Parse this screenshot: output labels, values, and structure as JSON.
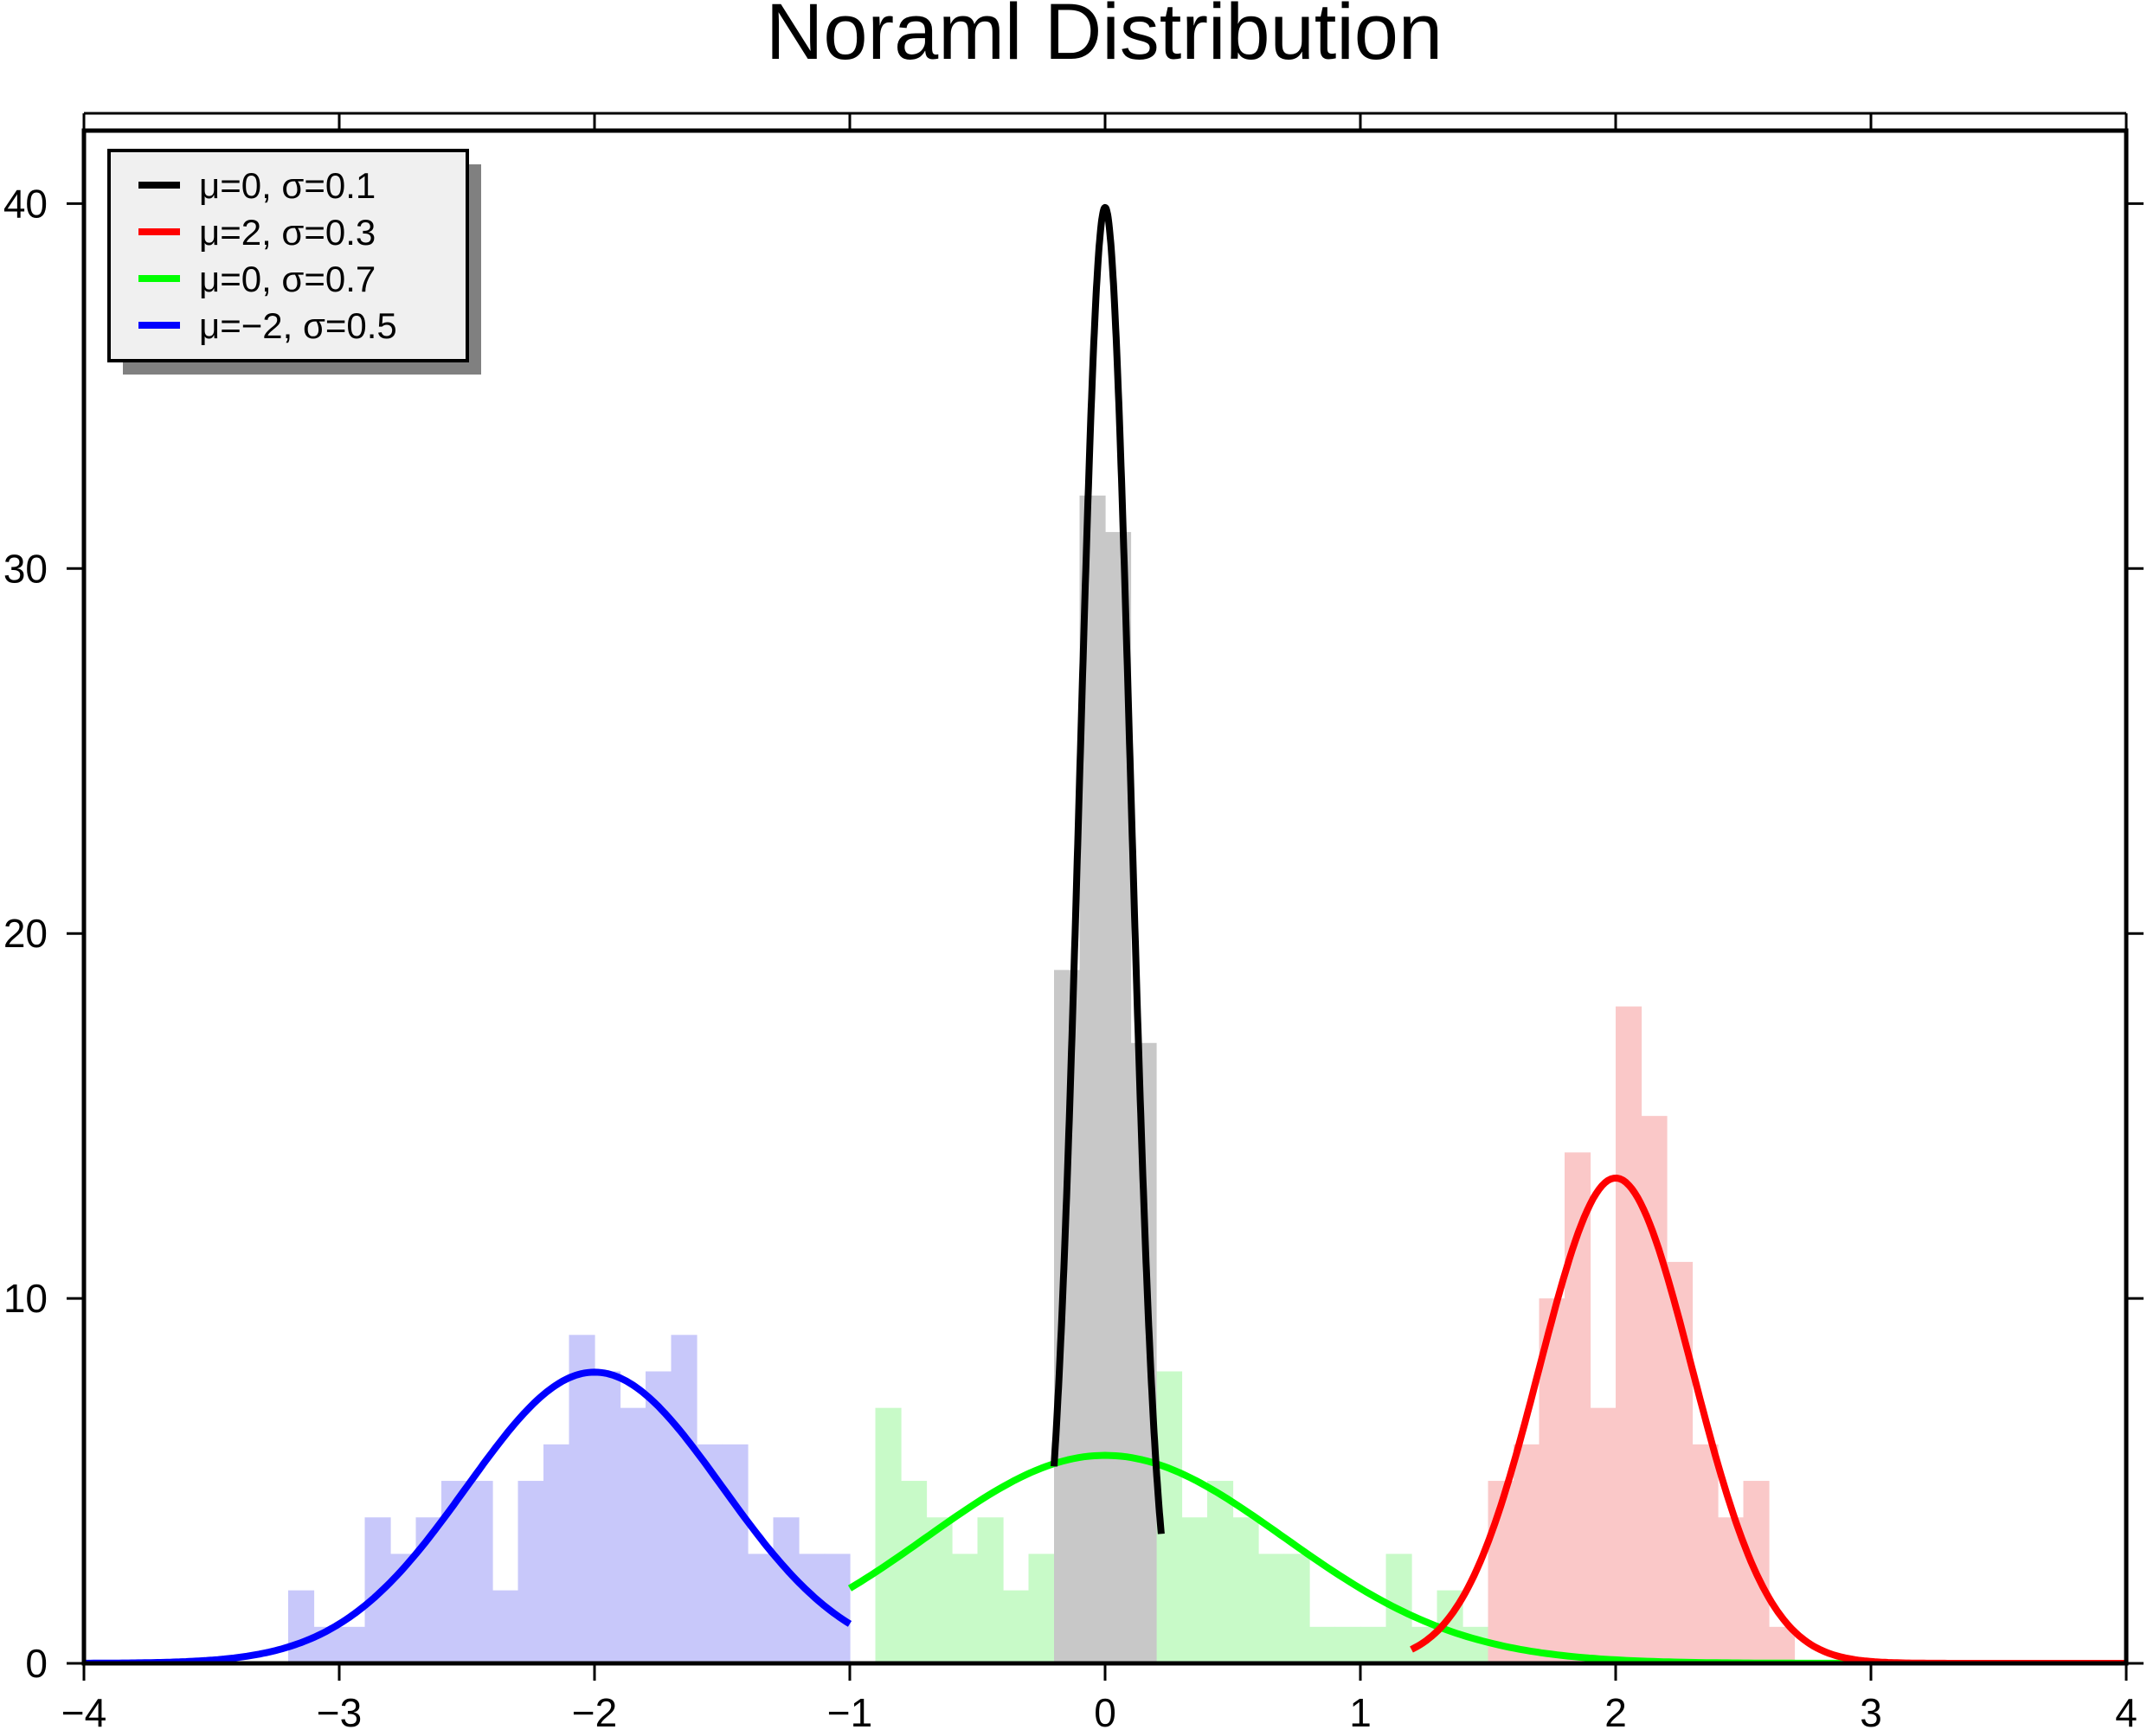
{
  "chart_data": {
    "type": "histogram",
    "title": "Noraml Distribution",
    "xlim": [
      -4,
      4
    ],
    "ylim": [
      0,
      42
    ],
    "x_ticks": [
      -4,
      -3,
      -2,
      -1,
      0,
      1,
      2,
      3,
      4
    ],
    "x_tick_labels": [
      "−4",
      "−3",
      "−2",
      "−1",
      "0",
      "1",
      "2",
      "3",
      "4"
    ],
    "y_ticks": [
      0,
      10,
      20,
      30,
      40
    ],
    "y_tick_labels": [
      "0",
      "10",
      "20",
      "30",
      "40"
    ],
    "grid": false,
    "legend": {
      "position": "top-left",
      "entries": [
        {
          "label": "μ=0, σ=0.1",
          "color": "#000000"
        },
        {
          "label": "μ=2, σ=0.3",
          "color": "#ff0000"
        },
        {
          "label": "μ=0, σ=0.7",
          "color": "#00ff00"
        },
        {
          "label": "μ=−2, σ=0.5",
          "color": "#0000ff"
        }
      ]
    },
    "series": [
      {
        "mu": -2,
        "sigma": 0.5,
        "line_color": "#0000ff",
        "fill_color": "#c8c8fa",
        "bin_width": 0.1,
        "bins": [
          [
            -3.2,
            2
          ],
          [
            -3.1,
            1
          ],
          [
            -3.0,
            1
          ],
          [
            -2.9,
            4
          ],
          [
            -2.8,
            3
          ],
          [
            -2.7,
            4
          ],
          [
            -2.6,
            5
          ],
          [
            -2.5,
            5
          ],
          [
            -2.4,
            2
          ],
          [
            -2.3,
            5
          ],
          [
            -2.2,
            6
          ],
          [
            -2.1,
            9
          ],
          [
            -2.0,
            8
          ],
          [
            -1.9,
            7
          ],
          [
            -1.8,
            8
          ],
          [
            -1.7,
            9
          ],
          [
            -1.6,
            6
          ],
          [
            -1.5,
            6
          ],
          [
            -1.4,
            3
          ],
          [
            -1.3,
            4
          ],
          [
            -1.2,
            3
          ],
          [
            -1.1,
            3
          ]
        ],
        "curve_x": [
          -4,
          -1
        ]
      },
      {
        "mu": 0,
        "sigma": 0.7,
        "line_color": "#00ff00",
        "fill_color": "#c8fac8",
        "bin_width": 0.1,
        "bins": [
          [
            -0.9,
            7
          ],
          [
            -0.8,
            5
          ],
          [
            -0.7,
            4
          ],
          [
            -0.6,
            3
          ],
          [
            -0.5,
            4
          ],
          [
            -0.4,
            2
          ],
          [
            -0.3,
            3
          ],
          [
            -0.2,
            10
          ],
          [
            -0.1,
            8
          ],
          [
            0.0,
            8
          ],
          [
            0.1,
            7
          ],
          [
            0.2,
            8
          ],
          [
            0.3,
            4
          ],
          [
            0.4,
            5
          ],
          [
            0.5,
            4
          ],
          [
            0.6,
            3
          ],
          [
            0.7,
            3
          ],
          [
            0.8,
            1
          ],
          [
            0.9,
            1
          ],
          [
            1.0,
            1
          ],
          [
            1.1,
            3
          ],
          [
            1.2,
            1
          ],
          [
            1.3,
            2
          ],
          [
            1.4,
            1
          ]
        ],
        "curve_x": [
          -1,
          4
        ]
      },
      {
        "mu": 2,
        "sigma": 0.3,
        "line_color": "#ff0000",
        "fill_color": "#fac8c8",
        "bin_width": 0.1,
        "bins": [
          [
            1.5,
            5
          ],
          [
            1.6,
            6
          ],
          [
            1.7,
            10
          ],
          [
            1.8,
            14
          ],
          [
            1.9,
            7
          ],
          [
            2.0,
            18
          ],
          [
            2.1,
            15
          ],
          [
            2.2,
            11
          ],
          [
            2.3,
            6
          ],
          [
            2.4,
            4
          ],
          [
            2.5,
            5
          ],
          [
            2.6,
            1
          ]
        ],
        "curve_x": [
          1.2,
          4
        ]
      },
      {
        "mu": 0,
        "sigma": 0.1,
        "line_color": "#000000",
        "fill_color": "#c8c8c8",
        "bin_width": 0.1,
        "bins": [
          [
            -0.2,
            19
          ],
          [
            -0.1,
            32
          ],
          [
            0.0,
            31
          ],
          [
            0.1,
            17
          ]
        ],
        "curve_x": [
          -0.2,
          0.22
        ]
      }
    ]
  }
}
